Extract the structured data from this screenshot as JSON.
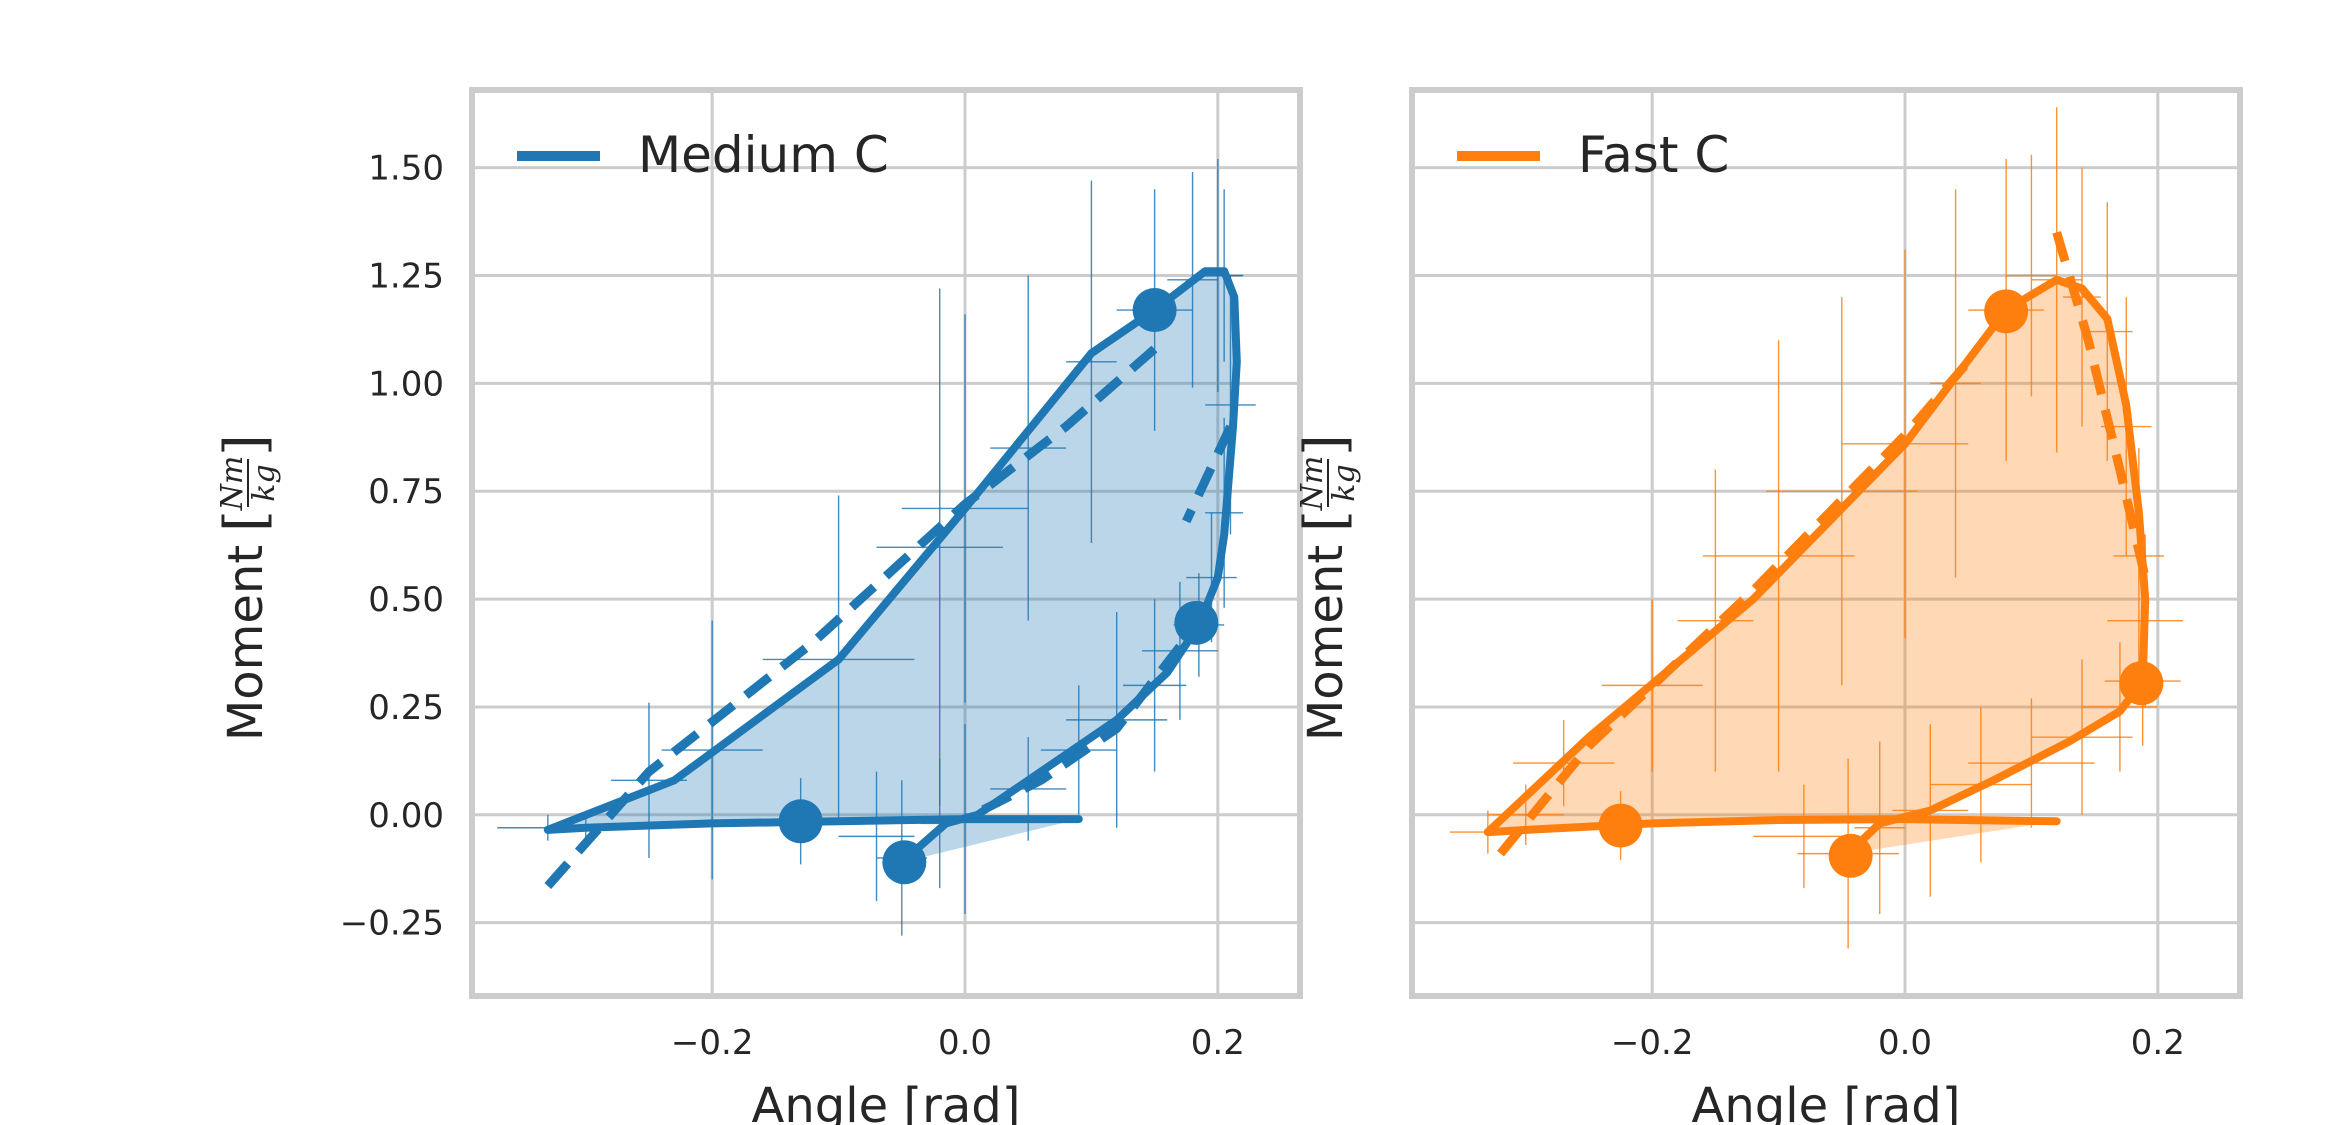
{
  "chart_data": [
    {
      "type": "line",
      "xlabel": "Angle [rad]",
      "ylabel": "Moment",
      "ylabel_unit": {
        "numerator": "Nm",
        "denominator": "kg"
      },
      "xlim": [
        -0.39,
        0.265
      ],
      "ylim": [
        -0.42,
        1.68
      ],
      "xticks": [
        -0.2,
        0.0,
        0.2
      ],
      "xtick_labels": [
        "−0.2",
        "0.0",
        "0.2"
      ],
      "yticks": [
        -0.25,
        0.0,
        0.25,
        0.5,
        0.75,
        1.0,
        1.25,
        1.5
      ],
      "ytick_labels": [
        "−0.25",
        "0.00",
        "0.25",
        "0.50",
        "0.75",
        "1.00",
        "1.25",
        "1.50"
      ],
      "grid": true,
      "legend": {
        "position": "top-left",
        "label": "Medium C"
      },
      "color": "#1f77b4",
      "fill_color": "#1f77b4",
      "fill_opacity": 0.3,
      "solid_loop": [
        [
          0.09,
          -0.01
        ],
        [
          0.0,
          -0.01
        ],
        [
          -0.1,
          -0.015
        ],
        [
          -0.2,
          -0.02
        ],
        [
          -0.3,
          -0.03
        ],
        [
          -0.33,
          -0.035
        ],
        [
          -0.23,
          0.08
        ],
        [
          -0.1,
          0.36
        ],
        [
          0.0,
          0.71
        ],
        [
          0.1,
          1.07
        ],
        [
          0.15,
          1.17
        ],
        [
          0.19,
          1.26
        ],
        [
          0.205,
          1.26
        ],
        [
          0.213,
          1.2
        ],
        [
          0.215,
          1.05
        ],
        [
          0.212,
          0.9
        ],
        [
          0.205,
          0.65
        ],
        [
          0.2,
          0.55
        ],
        [
          0.185,
          0.44
        ],
        [
          0.16,
          0.33
        ],
        [
          0.12,
          0.22
        ],
        [
          0.06,
          0.1
        ],
        [
          0.01,
          0.0
        ],
        [
          -0.015,
          -0.02
        ],
        [
          -0.05,
          -0.11
        ]
      ],
      "dashed_ascending": [
        [
          -0.33,
          -0.165
        ],
        [
          -0.25,
          0.1
        ],
        [
          -0.12,
          0.4
        ],
        [
          0.0,
          0.72
        ],
        [
          0.08,
          0.9
        ],
        [
          0.15,
          1.08
        ],
        [
          0.16,
          1.1
        ]
      ],
      "dashed_descending": [
        [
          0.21,
          0.9
        ],
        [
          0.175,
          0.68
        ]
      ],
      "dashed_unloading": [
        [
          0.17,
          0.39
        ],
        [
          0.12,
          0.2
        ],
        [
          0.06,
          0.08
        ],
        [
          0.0,
          -0.01
        ]
      ],
      "markers": [
        [
          0.15,
          1.17
        ],
        [
          0.183,
          0.445
        ],
        [
          -0.13,
          -0.015
        ],
        [
          -0.048,
          -0.11
        ]
      ],
      "error_points": [
        [
          -0.33,
          -0.03,
          0.04,
          0.03
        ],
        [
          -0.3,
          -0.03,
          0.02,
          0.03
        ],
        [
          -0.25,
          0.08,
          0.03,
          0.18
        ],
        [
          -0.2,
          0.15,
          0.04,
          0.3
        ],
        [
          -0.1,
          0.36,
          0.06,
          0.38
        ],
        [
          -0.02,
          0.62,
          0.05,
          0.6
        ],
        [
          0.0,
          0.71,
          0.05,
          0.45
        ],
        [
          0.05,
          0.85,
          0.03,
          0.4
        ],
        [
          0.1,
          1.05,
          0.02,
          0.42
        ],
        [
          0.15,
          1.17,
          0.03,
          0.28
        ],
        [
          0.18,
          1.24,
          0.02,
          0.25
        ],
        [
          0.2,
          1.25,
          0.02,
          0.27
        ],
        [
          0.205,
          1.25,
          0.015,
          0.2
        ],
        [
          0.21,
          0.95,
          0.02,
          0.3
        ],
        [
          0.205,
          0.7,
          0.015,
          0.22
        ],
        [
          0.195,
          0.55,
          0.02,
          0.15
        ],
        [
          0.185,
          0.44,
          0.02,
          0.12
        ],
        [
          0.17,
          0.38,
          0.03,
          0.16
        ],
        [
          0.15,
          0.3,
          0.025,
          0.2
        ],
        [
          0.12,
          0.22,
          0.04,
          0.25
        ],
        [
          0.09,
          0.15,
          0.03,
          0.15
        ],
        [
          0.05,
          0.06,
          0.03,
          0.12
        ],
        [
          0.0,
          -0.01,
          0.02,
          0.22
        ],
        [
          -0.02,
          -0.02,
          0.015,
          0.15
        ],
        [
          -0.05,
          -0.1,
          0.02,
          0.18
        ],
        [
          -0.07,
          -0.05,
          0.03,
          0.15
        ],
        [
          -0.13,
          -0.015,
          0.03,
          0.1
        ]
      ]
    },
    {
      "type": "line",
      "xlabel": "Angle [rad]",
      "ylabel": "Moment",
      "ylabel_unit": {
        "numerator": "Nm",
        "denominator": "kg"
      },
      "xlim": [
        -0.39,
        0.265
      ],
      "ylim": [
        -0.42,
        1.68
      ],
      "xticks": [
        -0.2,
        0.0,
        0.2
      ],
      "xtick_labels": [
        "−0.2",
        "0.0",
        "0.2"
      ],
      "yticks": [
        -0.25,
        0.0,
        0.25,
        0.5,
        0.75,
        1.0,
        1.25,
        1.5
      ],
      "ytick_labels": [],
      "grid": true,
      "legend": {
        "position": "top-left",
        "label": "Fast C"
      },
      "color": "#ff7f0e",
      "fill_color": "#ff7f0e",
      "fill_opacity": 0.3,
      "solid_loop": [
        [
          0.12,
          -0.015
        ],
        [
          0.0,
          -0.01
        ],
        [
          -0.1,
          -0.012
        ],
        [
          -0.2,
          -0.02
        ],
        [
          -0.3,
          -0.035
        ],
        [
          -0.33,
          -0.04
        ],
        [
          -0.25,
          0.18
        ],
        [
          -0.12,
          0.5
        ],
        [
          0.0,
          0.86
        ],
        [
          0.08,
          1.17
        ],
        [
          0.12,
          1.24
        ],
        [
          0.14,
          1.22
        ],
        [
          0.16,
          1.15
        ],
        [
          0.175,
          0.95
        ],
        [
          0.185,
          0.7
        ],
        [
          0.19,
          0.5
        ],
        [
          0.188,
          0.31
        ],
        [
          0.17,
          0.24
        ],
        [
          0.13,
          0.17
        ],
        [
          0.07,
          0.08
        ],
        [
          0.02,
          0.01
        ],
        [
          -0.02,
          -0.02
        ],
        [
          -0.045,
          -0.09
        ]
      ],
      "dashed_ascending": [
        [
          -0.32,
          -0.09
        ],
        [
          -0.25,
          0.16
        ],
        [
          -0.12,
          0.52
        ],
        [
          0.0,
          0.88
        ],
        [
          0.05,
          1.05
        ]
      ],
      "dashed_descending": [
        [
          0.12,
          1.35
        ],
        [
          0.145,
          1.1
        ],
        [
          0.17,
          0.8
        ],
        [
          0.19,
          0.55
        ]
      ],
      "dashed_unloading": [],
      "markers": [
        [
          0.08,
          1.167
        ],
        [
          0.187,
          0.305
        ],
        [
          -0.225,
          -0.025
        ],
        [
          -0.043,
          -0.095
        ]
      ],
      "error_points": [
        [
          -0.33,
          -0.04,
          0.03,
          0.05
        ],
        [
          -0.3,
          0.0,
          0.03,
          0.07
        ],
        [
          -0.27,
          0.12,
          0.04,
          0.1
        ],
        [
          -0.2,
          0.3,
          0.04,
          0.2
        ],
        [
          -0.15,
          0.45,
          0.03,
          0.35
        ],
        [
          -0.1,
          0.6,
          0.06,
          0.5
        ],
        [
          -0.05,
          0.75,
          0.06,
          0.45
        ],
        [
          0.0,
          0.86,
          0.05,
          0.45
        ],
        [
          0.04,
          1.0,
          0.02,
          0.45
        ],
        [
          0.08,
          1.17,
          0.03,
          0.35
        ],
        [
          0.1,
          1.25,
          0.02,
          0.28
        ],
        [
          0.12,
          1.24,
          0.02,
          0.4
        ],
        [
          0.14,
          1.2,
          0.015,
          0.3
        ],
        [
          0.16,
          1.12,
          0.02,
          0.3
        ],
        [
          0.175,
          0.9,
          0.02,
          0.3
        ],
        [
          0.185,
          0.6,
          0.02,
          0.25
        ],
        [
          0.19,
          0.45,
          0.03,
          0.2
        ],
        [
          0.188,
          0.31,
          0.03,
          0.15
        ],
        [
          0.17,
          0.25,
          0.03,
          0.15
        ],
        [
          0.14,
          0.18,
          0.04,
          0.18
        ],
        [
          0.1,
          0.12,
          0.05,
          0.15
        ],
        [
          0.06,
          0.07,
          0.04,
          0.18
        ],
        [
          0.02,
          0.01,
          0.03,
          0.2
        ],
        [
          -0.02,
          -0.03,
          0.02,
          0.2
        ],
        [
          -0.045,
          -0.09,
          0.04,
          0.22
        ],
        [
          -0.08,
          -0.05,
          0.04,
          0.12
        ],
        [
          -0.225,
          -0.025,
          0.05,
          0.08
        ]
      ]
    }
  ]
}
